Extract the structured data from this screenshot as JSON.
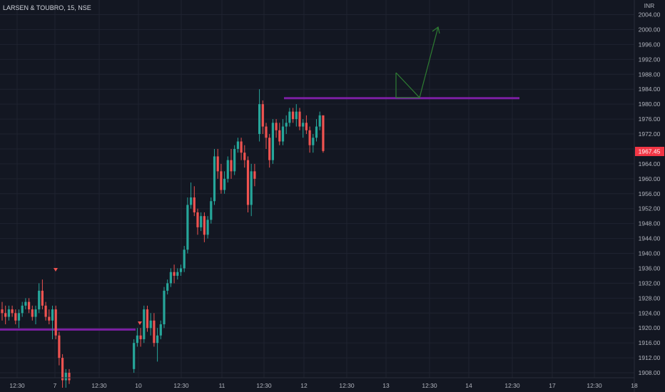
{
  "header": {
    "symbol_title": "LARSEN & TOUBRO, 15, NSE"
  },
  "price_axis": {
    "currency": "INR"
  },
  "last_price": {
    "label": "1967.45",
    "color": "#f23645"
  },
  "colors": {
    "background": "#131722",
    "up": "#26a69a",
    "down": "#ef5350",
    "level_line": "#7b1fa2",
    "arrow": "#2e7d32",
    "grid": "#1f2330"
  },
  "chart_data": {
    "type": "candlestick",
    "title": "",
    "symbol": "LARSEN & TOUBRO",
    "interval": "15",
    "exchange": "NSE",
    "ylim": [
      1906,
      2008
    ],
    "y_ticks": [
      "2004.00",
      "2000.00",
      "1996.00",
      "1992.00",
      "1988.00",
      "1984.00",
      "1980.00",
      "1976.00",
      "1972.00",
      "1968.00",
      "1964.00",
      "1960.00",
      "1956.00",
      "1952.00",
      "1948.00",
      "1944.00",
      "1940.00",
      "1936.00",
      "1932.00",
      "1928.00",
      "1924.00",
      "1920.00",
      "1916.00",
      "1912.00",
      "1908.00"
    ],
    "x_ticks": [
      "12:30",
      "7",
      "12:30",
      "10",
      "12:30",
      "11",
      "12:30",
      "12",
      "12:30",
      "13",
      "12:30",
      "14",
      "12:30",
      "17",
      "12:30",
      "18"
    ],
    "ohlc": [
      [
        1925,
        1927,
        1922,
        1924
      ],
      [
        1924,
        1926,
        1921,
        1923
      ],
      [
        1923,
        1926,
        1922,
        1925
      ],
      [
        1925,
        1926,
        1923,
        1924
      ],
      [
        1924,
        1925,
        1921,
        1922
      ],
      [
        1922,
        1925,
        1920,
        1924
      ],
      [
        1924,
        1927,
        1923,
        1926
      ],
      [
        1926,
        1928,
        1925,
        1927
      ],
      [
        1927,
        1928,
        1924,
        1925
      ],
      [
        1925,
        1926,
        1922,
        1923
      ],
      [
        1923,
        1926,
        1921,
        1925
      ],
      [
        1925,
        1932,
        1924,
        1930
      ],
      [
        1930,
        1933,
        1925,
        1926
      ],
      [
        1926,
        1927,
        1922,
        1923
      ],
      [
        1923,
        1925,
        1921,
        1922
      ],
      [
        1922,
        1926,
        1917,
        1925
      ],
      [
        1925,
        1926,
        1917,
        1918
      ],
      [
        1918,
        1919,
        1910,
        1912
      ],
      [
        1912,
        1913,
        1904,
        1906
      ],
      [
        1906,
        1909,
        1904,
        1908
      ],
      [
        1908,
        1909,
        1905,
        1906
      ],
      [
        1909,
        1917,
        1908,
        1916
      ],
      [
        1916,
        1920,
        1915,
        1918
      ],
      [
        1918,
        1920,
        1915,
        1917
      ],
      [
        1917,
        1926,
        1916,
        1925
      ],
      [
        1925,
        1926,
        1919,
        1920
      ],
      [
        1920,
        1924,
        1918,
        1922
      ],
      [
        1922,
        1924,
        1915,
        1916
      ],
      [
        1916,
        1920,
        1911,
        1918
      ],
      [
        1918,
        1922,
        1917,
        1921
      ],
      [
        1921,
        1931,
        1920,
        1930
      ],
      [
        1930,
        1933,
        1929,
        1932
      ],
      [
        1932,
        1936,
        1931,
        1935
      ],
      [
        1935,
        1937,
        1932,
        1934
      ],
      [
        1934,
        1936,
        1933,
        1935
      ],
      [
        1935,
        1937,
        1934,
        1936
      ],
      [
        1936,
        1942,
        1935,
        1941
      ],
      [
        1941,
        1955,
        1940,
        1953
      ],
      [
        1953,
        1959,
        1952,
        1955
      ],
      [
        1955,
        1958,
        1950,
        1951
      ],
      [
        1951,
        1952,
        1945,
        1947
      ],
      [
        1947,
        1951,
        1946,
        1950
      ],
      [
        1950,
        1951,
        1943,
        1945
      ],
      [
        1945,
        1950,
        1944,
        1949
      ],
      [
        1949,
        1955,
        1948,
        1954
      ],
      [
        1954,
        1968,
        1953,
        1966
      ],
      [
        1966,
        1968,
        1960,
        1962
      ],
      [
        1962,
        1964,
        1956,
        1957
      ],
      [
        1957,
        1962,
        1956,
        1960
      ],
      [
        1960,
        1966,
        1959,
        1965
      ],
      [
        1965,
        1968,
        1960,
        1962
      ],
      [
        1962,
        1969,
        1961,
        1968
      ],
      [
        1968,
        1971,
        1967,
        1970
      ],
      [
        1970,
        1971,
        1965,
        1967
      ],
      [
        1967,
        1969,
        1963,
        1965
      ],
      [
        1965,
        1966,
        1951,
        1953
      ],
      [
        1953,
        1964,
        1950,
        1962
      ],
      [
        1962,
        1964,
        1958,
        1960
      ],
      [
        1972,
        1984,
        1970,
        1980
      ],
      [
        1980,
        1981,
        1972,
        1974
      ],
      [
        1974,
        1975,
        1968,
        1971
      ],
      [
        1971,
        1972,
        1963,
        1965
      ],
      [
        1965,
        1976,
        1964,
        1975
      ],
      [
        1975,
        1976,
        1971,
        1973
      ],
      [
        1973,
        1975,
        1969,
        1970
      ],
      [
        1970,
        1976,
        1969,
        1974
      ],
      [
        1974,
        1977,
        1972,
        1975
      ],
      [
        1975,
        1979,
        1974,
        1978
      ],
      [
        1978,
        1979,
        1975,
        1976
      ],
      [
        1976,
        1980,
        1974,
        1978
      ],
      [
        1978,
        1979,
        1973,
        1974
      ],
      [
        1974,
        1976,
        1971,
        1975
      ],
      [
        1975,
        1977,
        1972,
        1973
      ],
      [
        1973,
        1974,
        1967,
        1969
      ],
      [
        1969,
        1972,
        1967,
        1971
      ],
      [
        1971,
        1976,
        1970,
        1974
      ],
      [
        1974,
        1978,
        1973,
        1977
      ],
      [
        1977,
        1977,
        1967,
        1967.45
      ]
    ],
    "horizontal_levels": [
      1981.6,
      1919.6
    ],
    "annotations": [
      "triangle-down markers at 1936 and 1921",
      "green zig-zag arrow pointing up"
    ]
  }
}
